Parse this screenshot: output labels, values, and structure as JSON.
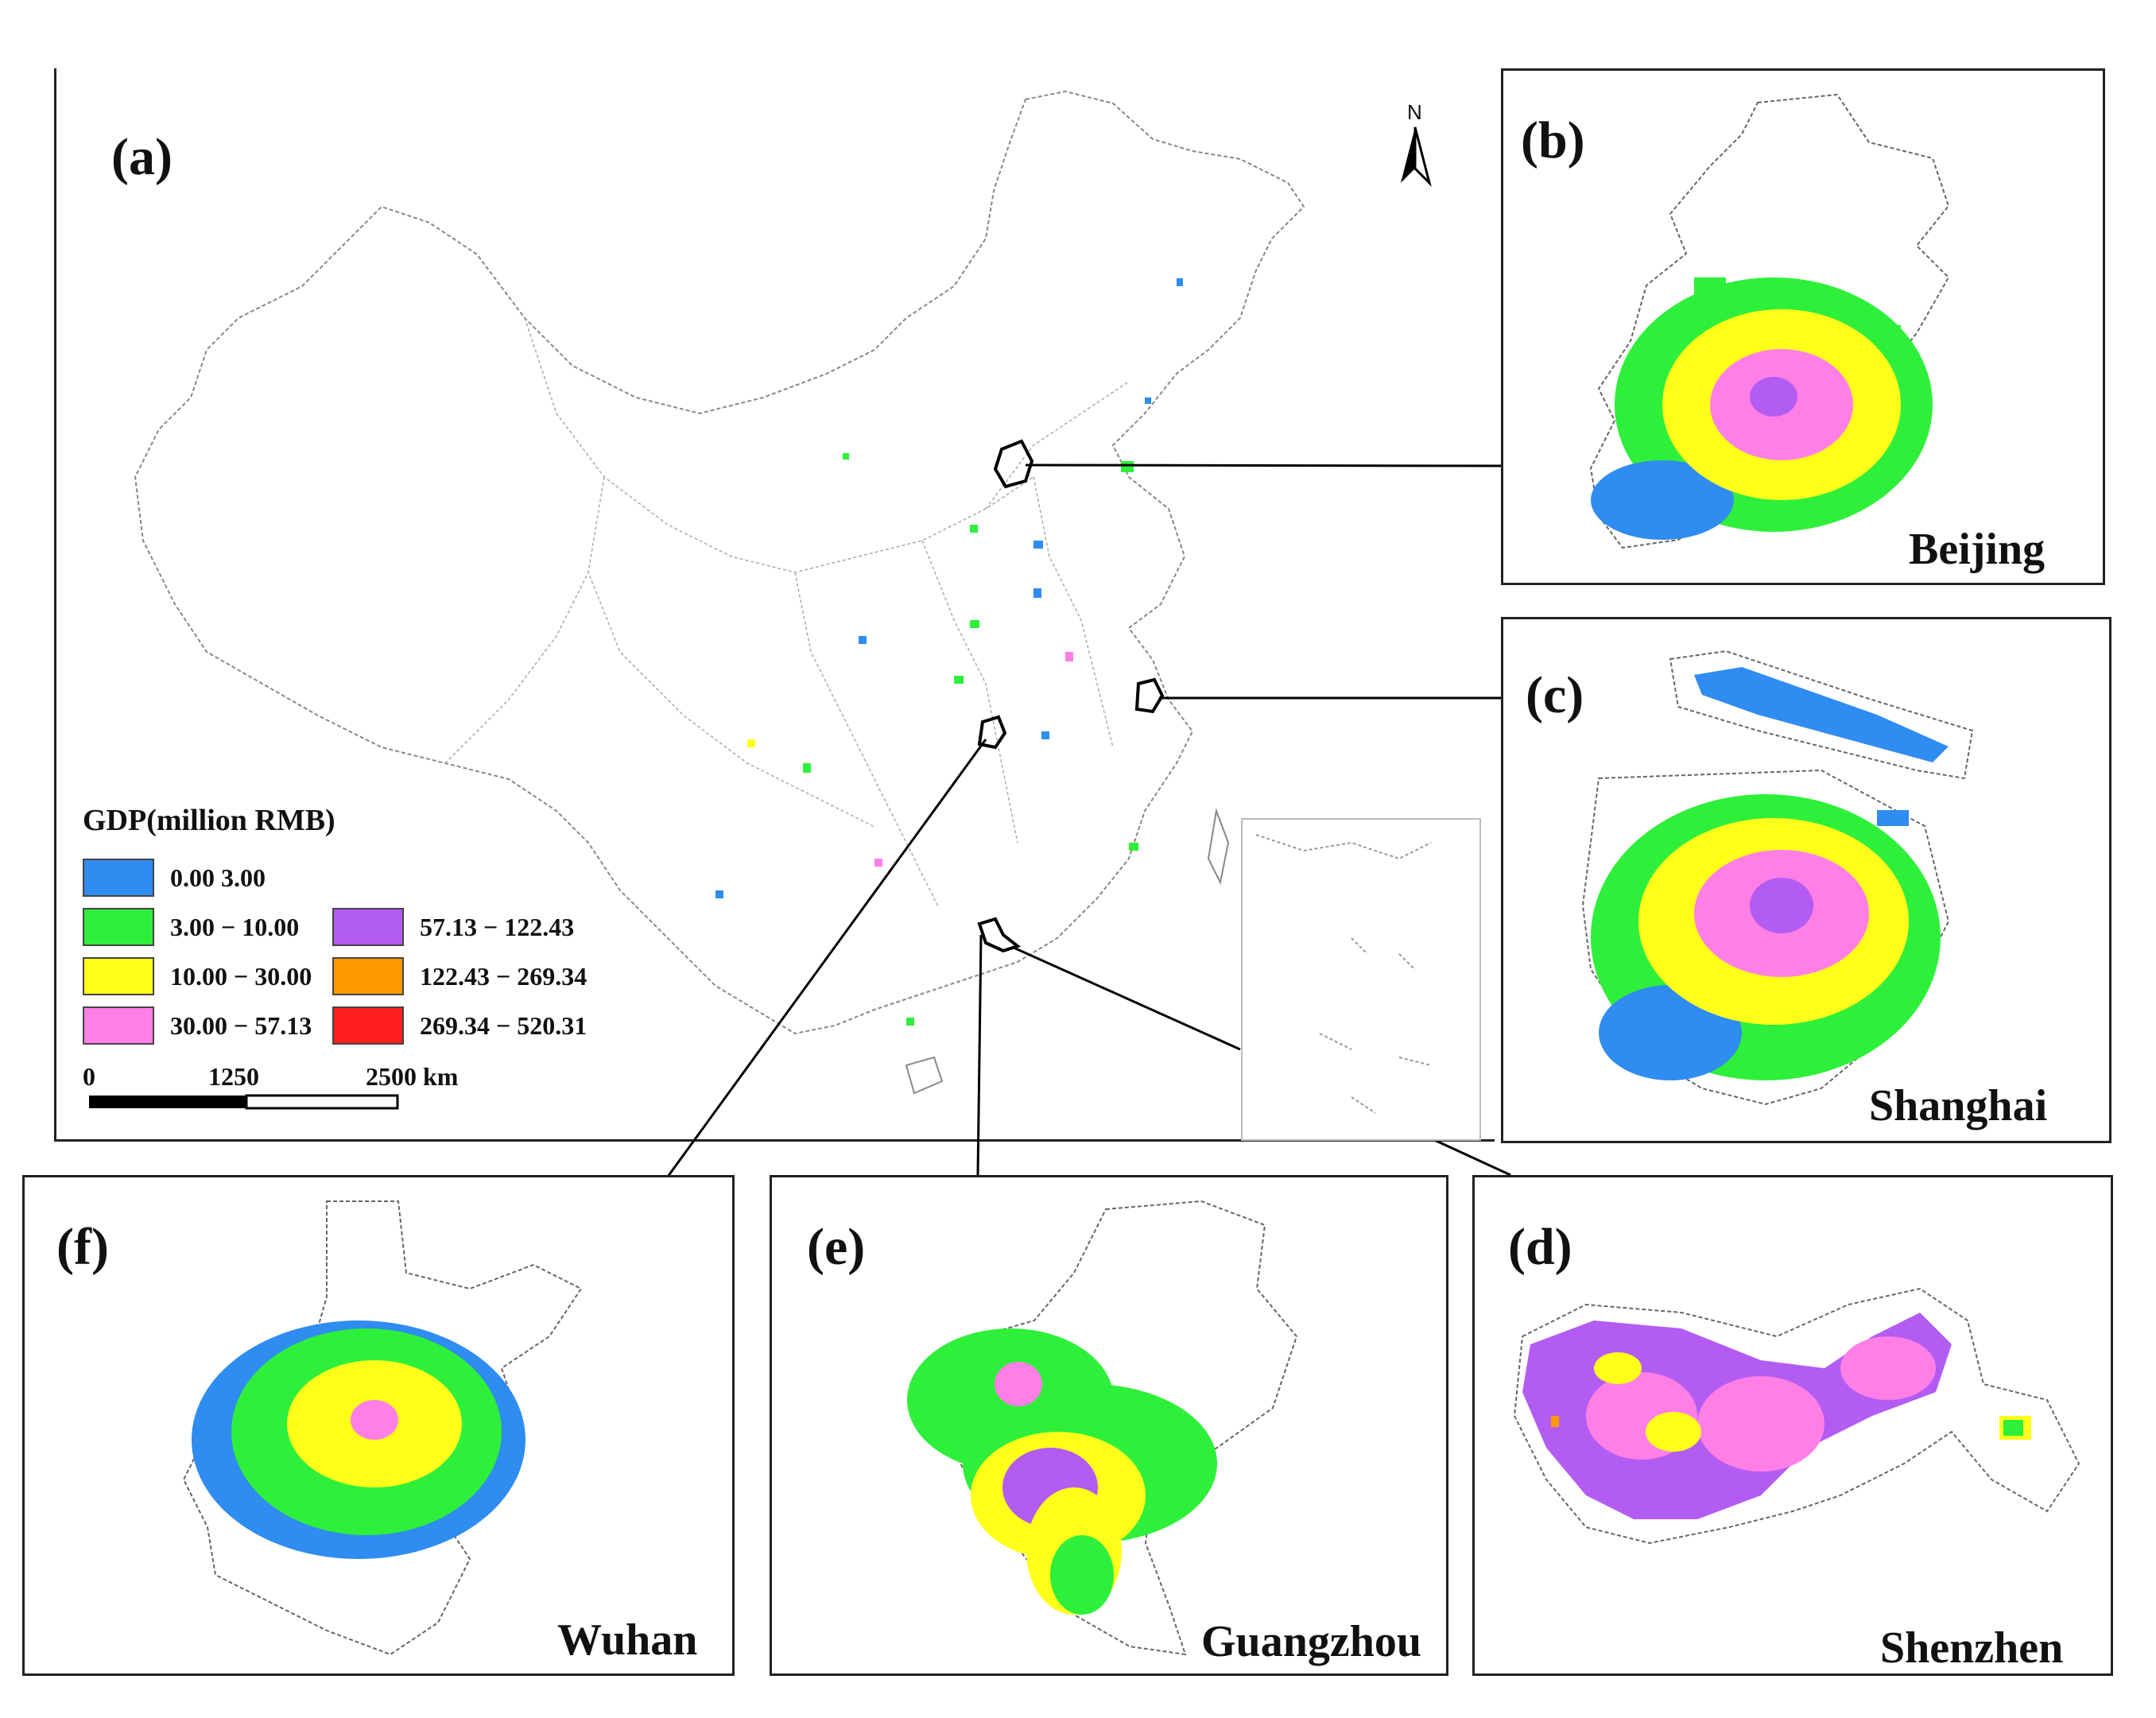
{
  "colors": {
    "c1": "#2f8cf0",
    "c2": "#2ef03a",
    "c3": "#ffff1a",
    "c4": "#ff7fe6",
    "c5": "#b35cf2",
    "c6": "#ff9a00",
    "c7": "#ff1e1e"
  },
  "main_map": {
    "label": "(a)",
    "north_symbol": "N",
    "legend": {
      "title": "GDP(million RMB)",
      "items": [
        {
          "label": "0.00   3.00",
          "color_key": "c1"
        },
        {
          "label": "3.00 − 10.00",
          "color_key": "c2"
        },
        {
          "label": "10.00 − 30.00",
          "color_key": "c3"
        },
        {
          "label": "30.00 − 57.13",
          "color_key": "c4"
        },
        {
          "label": "57.13 − 122.43",
          "color_key": "c5"
        },
        {
          "label": "122.43 − 269.34",
          "color_key": "c6"
        },
        {
          "label": "269.34 − 520.31",
          "color_key": "c7"
        }
      ]
    },
    "scale_bar": {
      "labels": [
        "0",
        "1250",
        "2500 km"
      ]
    }
  },
  "insets": [
    {
      "id": "b",
      "label": "(b)",
      "city": "Beijing"
    },
    {
      "id": "c",
      "label": "(c)",
      "city": "Shanghai"
    },
    {
      "id": "d",
      "label": "(d)",
      "city": "Shenzhen"
    },
    {
      "id": "e",
      "label": "(e)",
      "city": "Guangzhou"
    },
    {
      "id": "f",
      "label": "(f)",
      "city": "Wuhan"
    }
  ]
}
